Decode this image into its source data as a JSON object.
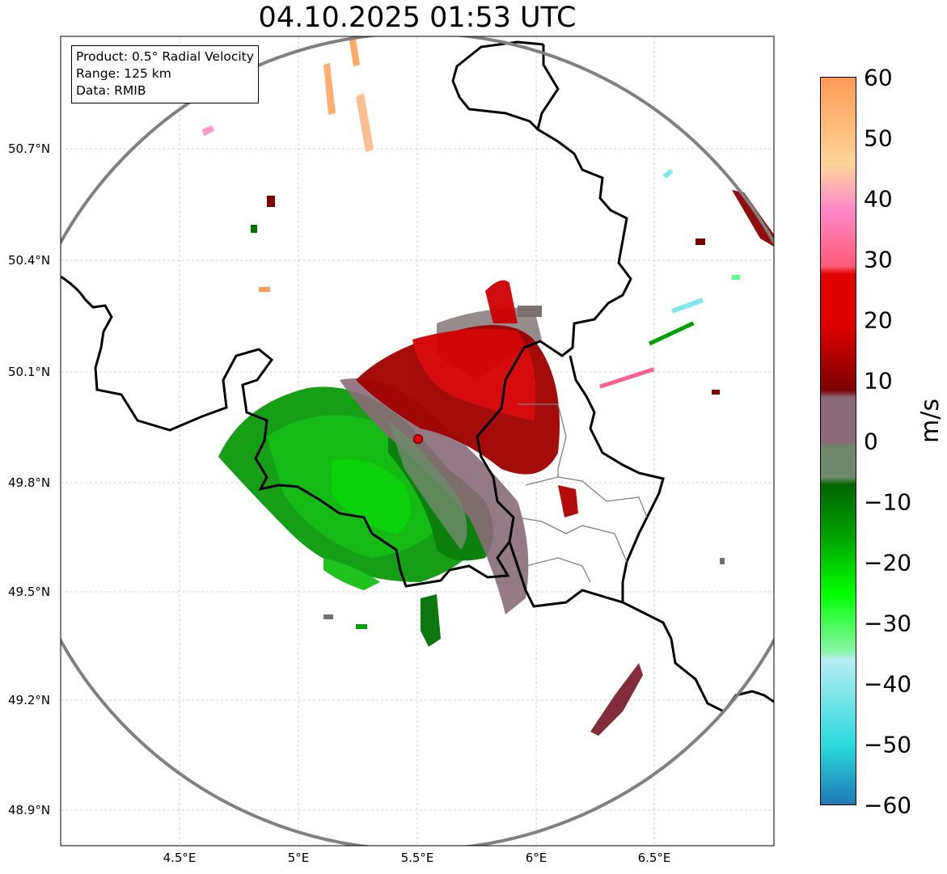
{
  "title": "04.10.2025 01:53 UTC",
  "info": {
    "product": "Product: 0.5° Radial Velocity",
    "range": "Range: 125 km",
    "source": "Data: RMIB"
  },
  "axes": {
    "lat_labels": [
      "50.7°N",
      "50.4°N",
      "50.1°N",
      "49.8°N",
      "49.5°N",
      "49.2°N",
      "48.9°N"
    ],
    "lon_labels": [
      "4.5°E",
      "5°E",
      "5.5°E",
      "6°E",
      "6.5°E"
    ]
  },
  "colorbar": {
    "unit": "m/s",
    "tick_labels": [
      "60",
      "50",
      "40",
      "30",
      "20",
      "10",
      "0",
      "−10",
      "−20",
      "−30",
      "−40",
      "−50",
      "−60"
    ],
    "min": -60,
    "max": 60,
    "colors": {
      "neg_far": "#1f77b4",
      "neg_cyan": "#2ad9dc",
      "neg_light": "#b8eef2",
      "neg_bright_green": "#00ff00",
      "neg_green": "#00a000",
      "neg_dark_green": "#006400",
      "zero_gray_green": "#6e8a6a",
      "zero_gray_purple": "#8a6a78",
      "pos_maroon": "#7a0000",
      "pos_red": "#e00000",
      "pos_pink": "#ff5a78",
      "pos_light_pink": "#ff8ac8",
      "pos_peach": "#ffd59a",
      "pos_orange": "#ff9a55"
    }
  },
  "radar_site": {
    "lon": 5.505,
    "lat": 49.914,
    "color": "#e00000"
  },
  "range_ring_color": "#808080"
}
